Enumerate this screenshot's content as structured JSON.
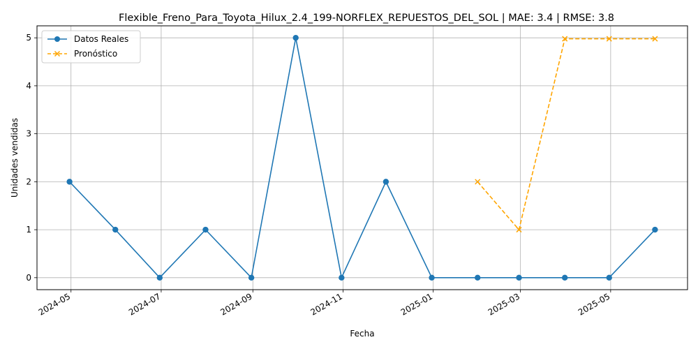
{
  "chart_data": {
    "type": "line",
    "title": "Flexible_Freno_Para_Toyota_Hilux_2.4_199-NORFLEX_REPUESTOS_DEL_SOL | MAE: 3.4 | RMSE: 3.8",
    "xlabel": "Fecha",
    "ylabel": "Unidades vendidas",
    "ylim": [
      -0.25,
      5.25
    ],
    "xlim": [
      "2024-04-08",
      "2025-06-22"
    ],
    "grid": true,
    "legend_position": "top-left",
    "x_ticks": [
      "2024-05",
      "2024-07",
      "2024-09",
      "2024-11",
      "2025-01",
      "2025-03",
      "2025-05"
    ],
    "y_ticks": [
      0,
      1,
      2,
      3,
      4,
      5
    ],
    "series": [
      {
        "name": "Datos Reales",
        "color": "#1f77b4",
        "marker": "circle",
        "line_style": "solid",
        "x": [
          "2024-04-30",
          "2024-05-31",
          "2024-06-30",
          "2024-07-31",
          "2024-08-31",
          "2024-09-30",
          "2024-10-31",
          "2024-11-30",
          "2024-12-31",
          "2025-01-31",
          "2025-02-28",
          "2025-03-31",
          "2025-04-30",
          "2025-05-31"
        ],
        "values": [
          2,
          1,
          0,
          1,
          0,
          5,
          0,
          2,
          0,
          0,
          0,
          0,
          0,
          1
        ]
      },
      {
        "name": "Pronóstico",
        "color": "#ffa500",
        "marker": "x",
        "line_style": "dashed",
        "x": [
          "2025-01-31",
          "2025-02-28",
          "2025-03-31",
          "2025-04-30",
          "2025-05-31"
        ],
        "values": [
          2,
          1,
          4.98,
          4.98,
          4.98
        ]
      }
    ]
  }
}
